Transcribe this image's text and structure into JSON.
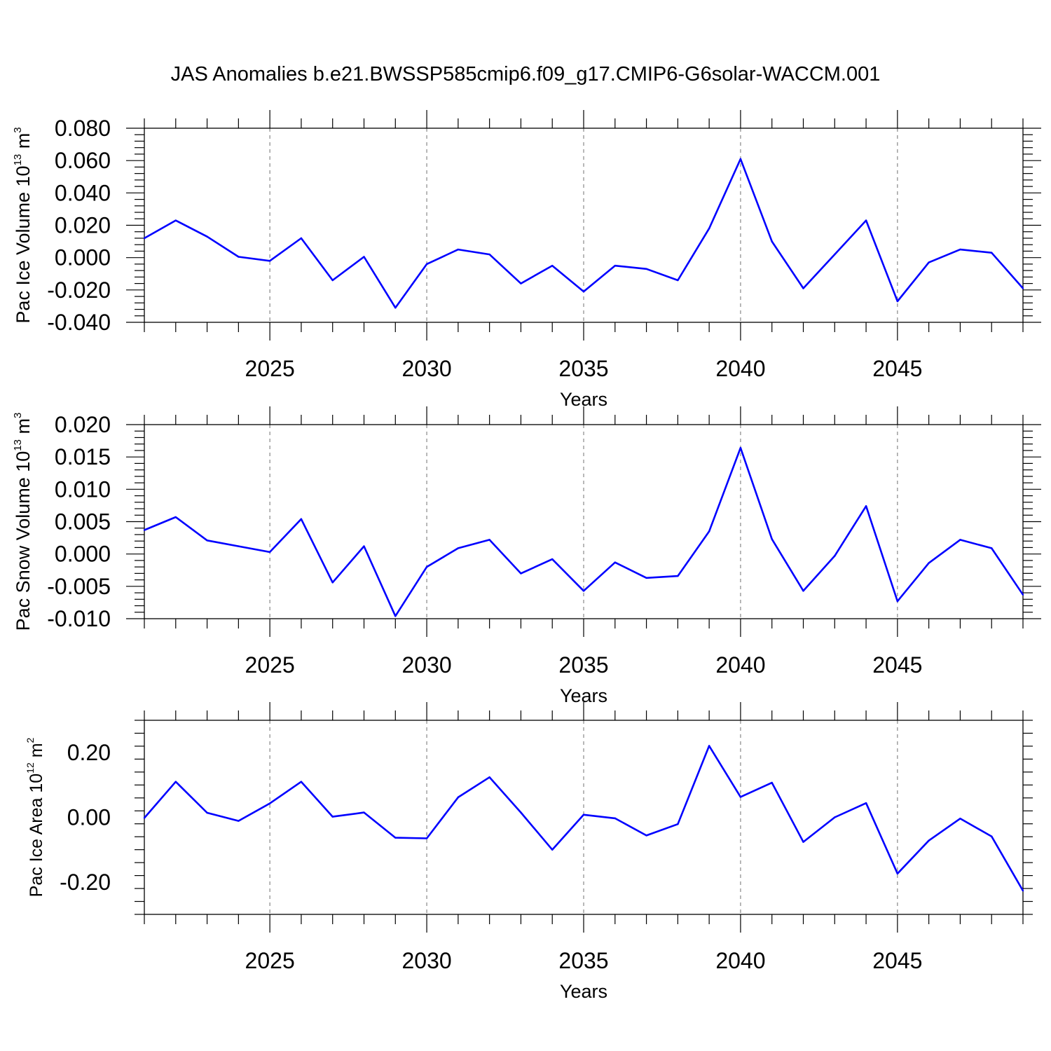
{
  "title": "JAS Anomalies b.e21.BWSSP585cmip6.f09_g17.CMIP6-G6solar-WACCM.001",
  "colors": {
    "series": "#0000ff",
    "axis": "#000000",
    "grid": "#888888"
  },
  "chart_data": [
    {
      "type": "line",
      "ylabel_main": "Pac Ice Volume 10",
      "ylabel_exp": "13",
      "ylabel_unit": " m",
      "ylabel_unit_exp": "3",
      "xlabel": "Years",
      "xlim": [
        2021,
        2049
      ],
      "ylim": [
        -0.04,
        0.08
      ],
      "yticks": [
        -0.04,
        -0.02,
        0.0,
        0.02,
        0.04,
        0.06,
        0.08
      ],
      "ytick_labels": [
        "-0.040",
        "-0.020",
        "0.000",
        "0.020",
        "0.040",
        "0.060",
        "0.080"
      ],
      "xticks": [
        2025,
        2030,
        2035,
        2040,
        2045
      ],
      "xtick_labels": [
        "2025",
        "2030",
        "2035",
        "2040",
        "2045"
      ],
      "grid": "vertical dashed at major x ticks",
      "series": [
        {
          "x": [
            2021,
            2022,
            2023,
            2024,
            2025,
            2026,
            2027,
            2028,
            2029,
            2030,
            2031,
            2032,
            2033,
            2034,
            2035,
            2036,
            2037,
            2038,
            2039,
            2040,
            2041,
            2042,
            2043,
            2044,
            2045,
            2046,
            2047,
            2048,
            2049
          ],
          "values": [
            0.012,
            0.023,
            0.013,
            0.0005,
            -0.002,
            0.012,
            -0.014,
            0.0005,
            -0.031,
            -0.004,
            0.005,
            0.002,
            -0.016,
            -0.005,
            -0.021,
            -0.005,
            -0.007,
            -0.014,
            0.018,
            0.061,
            0.01,
            -0.019,
            0.002,
            0.023,
            -0.027,
            -0.003,
            0.005,
            0.003,
            -0.019
          ]
        }
      ]
    },
    {
      "type": "line",
      "ylabel_main": "Pac Snow Volume 10",
      "ylabel_exp": "13",
      "ylabel_unit": " m",
      "ylabel_unit_exp": "3",
      "xlabel": "Years",
      "xlim": [
        2021,
        2049
      ],
      "ylim": [
        -0.01,
        0.02
      ],
      "yticks": [
        -0.01,
        -0.005,
        0.0,
        0.005,
        0.01,
        0.015,
        0.02
      ],
      "ytick_labels": [
        "-0.010",
        "-0.005",
        "0.000",
        "0.005",
        "0.010",
        "0.015",
        "0.020"
      ],
      "xticks": [
        2025,
        2030,
        2035,
        2040,
        2045
      ],
      "xtick_labels": [
        "2025",
        "2030",
        "2035",
        "2040",
        "2045"
      ],
      "grid": "vertical dashed at major x ticks",
      "series": [
        {
          "x": [
            2021,
            2022,
            2023,
            2024,
            2025,
            2026,
            2027,
            2028,
            2029,
            2030,
            2031,
            2032,
            2033,
            2034,
            2035,
            2036,
            2037,
            2038,
            2039,
            2040,
            2041,
            2042,
            2043,
            2044,
            2045,
            2046,
            2047,
            2048,
            2049
          ],
          "values": [
            0.0037,
            0.0057,
            0.0021,
            0.0012,
            0.0003,
            0.0054,
            -0.0044,
            0.0012,
            -0.0096,
            -0.002,
            0.0009,
            0.0022,
            -0.003,
            -0.0008,
            -0.0057,
            -0.0013,
            -0.0037,
            -0.0034,
            0.0035,
            0.0164,
            0.0023,
            -0.0057,
            -0.0003,
            0.0074,
            -0.0073,
            -0.0014,
            0.0022,
            0.0009,
            -0.0063
          ]
        }
      ]
    },
    {
      "type": "line",
      "ylabel_main": "Pac Ice Area 10",
      "ylabel_exp": "12",
      "ylabel_unit": " m",
      "ylabel_unit_exp": "2",
      "xlabel": "Years",
      "xlim": [
        2021,
        2049
      ],
      "ylim": [
        -0.3,
        0.3
      ],
      "yticks": [
        -0.2,
        0.0,
        0.2
      ],
      "ytick_labels": [
        "-0.20",
        "0.00",
        "0.20"
      ],
      "xticks": [
        2025,
        2030,
        2035,
        2040,
        2045
      ],
      "xtick_labels": [
        "2025",
        "2030",
        "2035",
        "2040",
        "2045"
      ],
      "grid": "vertical dashed at major x ticks",
      "series": [
        {
          "x": [
            2021,
            2022,
            2023,
            2024,
            2025,
            2026,
            2027,
            2028,
            2029,
            2030,
            2031,
            2032,
            2033,
            2034,
            2035,
            2036,
            2037,
            2038,
            2039,
            2040,
            2041,
            2042,
            2043,
            2044,
            2045,
            2046,
            2047,
            2048,
            2049
          ],
          "values": [
            -0.002,
            0.11,
            0.014,
            -0.011,
            0.043,
            0.11,
            0.002,
            0.015,
            -0.063,
            -0.065,
            0.062,
            0.124,
            0.015,
            -0.1,
            0.008,
            -0.003,
            -0.056,
            -0.021,
            0.221,
            0.063,
            0.107,
            -0.076,
            0.0,
            0.044,
            -0.174,
            -0.072,
            -0.004,
            -0.059,
            -0.227
          ]
        }
      ]
    }
  ]
}
